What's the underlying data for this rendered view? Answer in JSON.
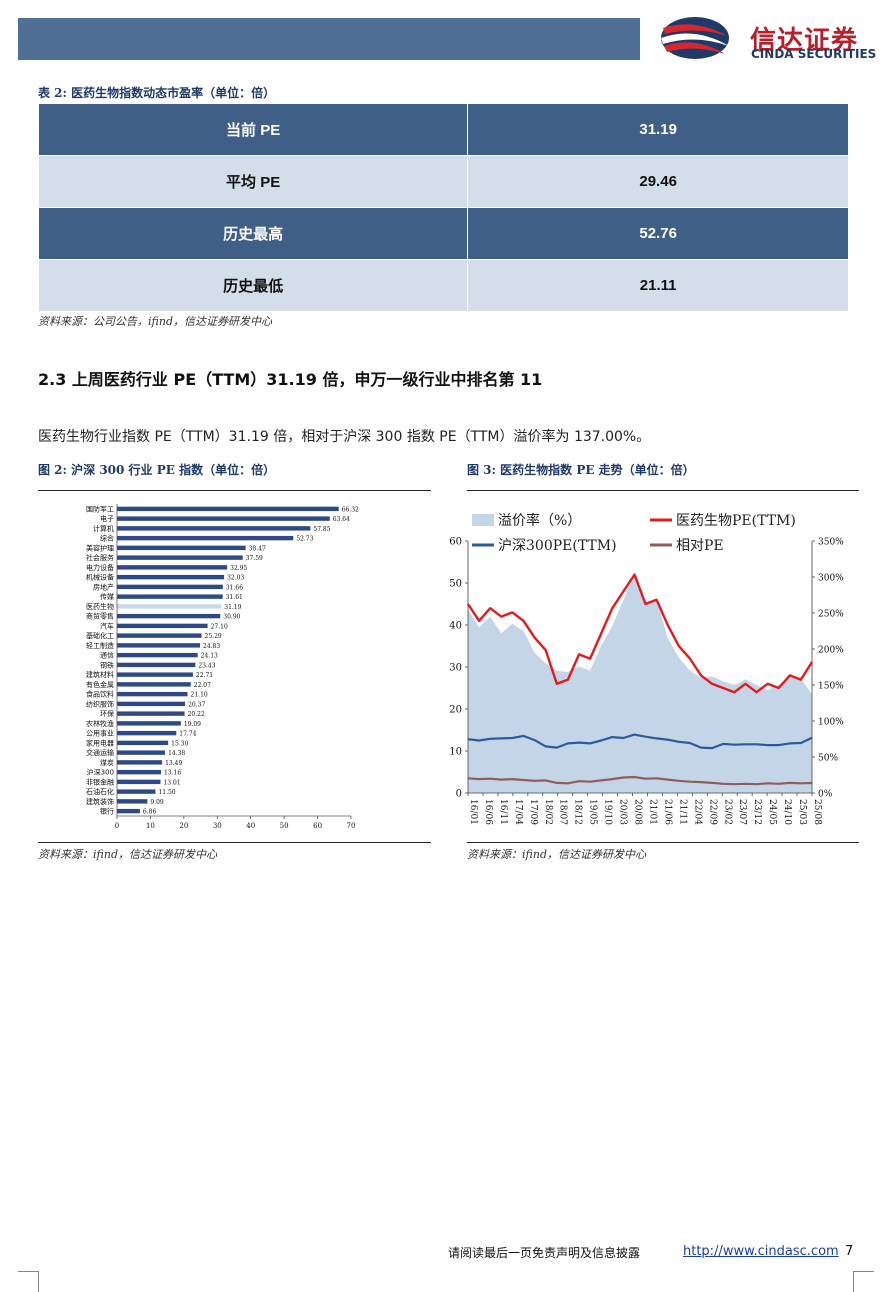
{
  "header": {
    "brand_cn": "信达证券",
    "brand_en": "CINDA SECURITIES"
  },
  "table2": {
    "caption": "表 2: 医药生物指数动态市盈率（单位：倍）",
    "rows": [
      {
        "label": "当前 PE",
        "value": "31.19"
      },
      {
        "label": "平均 PE",
        "value": "29.46"
      },
      {
        "label": "历史最高",
        "value": "52.76"
      },
      {
        "label": "历史最低",
        "value": "21.11"
      }
    ],
    "source": "资料来源：公司公告，ifind，信达证券研发中心"
  },
  "section": {
    "title": "2.3 上周医药行业 PE（TTM）31.19 倍，申万一级行业中排名第 11",
    "body": "医药生物行业指数 PE（TTM）31.19 倍，相对于沪深 300 指数 PE（TTM）溢价率为 137.00%。"
  },
  "figure2": {
    "caption": "图 2: 沪深 300 行业 PE 指数（单位：倍）",
    "source": "资料来源：ifind，信达证券研发中心"
  },
  "figure3": {
    "caption": "图 3: 医药生物指数 PE 走势（单位：倍）",
    "source": "资料来源：ifind，信达证券研发中心"
  },
  "chart_data": [
    {
      "type": "bar",
      "orientation": "horizontal",
      "categories": [
        "国防军工",
        "电子",
        "计算机",
        "综合",
        "美容护理",
        "社会服务",
        "电力设备",
        "机械设备",
        "房地产",
        "传媒",
        "医药生物",
        "商贸零售",
        "汽车",
        "基础化工",
        "轻工制造",
        "通信",
        "钢铁",
        "建筑材料",
        "有色金属",
        "食品饮料",
        "纺织服饰",
        "环保",
        "农林牧渔",
        "公用事业",
        "家用电器",
        "交通运输",
        "煤炭",
        "沪深300",
        "非银金融",
        "石油石化",
        "建筑装饰",
        "银行"
      ],
      "values": [
        66.32,
        63.64,
        57.85,
        52.73,
        38.47,
        37.59,
        32.95,
        32.03,
        31.66,
        31.61,
        31.19,
        30.9,
        27.1,
        25.29,
        24.83,
        24.13,
        23.43,
        22.71,
        22.07,
        21.1,
        20.37,
        20.22,
        19.09,
        17.74,
        15.3,
        14.38,
        13.49,
        13.16,
        13.01,
        11.5,
        9.09,
        6.86
      ],
      "xlim": [
        0,
        70
      ],
      "x_ticks": [
        "0",
        "10",
        "20",
        "30",
        "40",
        "50",
        "60",
        "70"
      ],
      "highlight_category": "医药生物",
      "colors": {
        "bar": "#2e4a86",
        "highlight": "#c9d9ec"
      }
    },
    {
      "type": "line",
      "x_ticks": [
        "16/01",
        "16/06",
        "16/11",
        "17/04",
        "17/09",
        "18/02",
        "18/07",
        "18/12",
        "19/05",
        "19/10",
        "20/03",
        "20/08",
        "21/01",
        "21/06",
        "21/11",
        "22/04",
        "22/09",
        "23/02",
        "23/07",
        "23/12",
        "24/05",
        "24/10",
        "25/03",
        "25/08"
      ],
      "ylim": [
        0,
        60
      ],
      "y_ticks": [
        "0",
        "10",
        "20",
        "30",
        "40",
        "50",
        "60"
      ],
      "y2lim": [
        0,
        350
      ],
      "y2_ticks": [
        "0%",
        "50%",
        "100%",
        "150%",
        "200%",
        "250%",
        "300%",
        "350%"
      ],
      "series": [
        {
          "name": "溢价率（%）",
          "type": "area",
          "axis": "right",
          "color": "#c5d5e8",
          "values": [
            255,
            230,
            245,
            222,
            235,
            225,
            195,
            180,
            170,
            168,
            176,
            170,
            205,
            232,
            268,
            305,
            265,
            270,
            215,
            188,
            170,
            160,
            162,
            155,
            150,
            158,
            150,
            143,
            150,
            162,
            159,
            137
          ]
        },
        {
          "name": "医药生物PE(TTM)",
          "axis": "left",
          "color": "#e41a1c",
          "values": [
            45,
            41,
            44,
            42,
            43,
            41,
            37,
            34,
            26,
            27,
            33,
            32,
            38,
            44,
            48,
            52,
            45,
            46,
            40,
            35,
            32,
            28,
            26,
            25,
            24,
            26,
            24,
            26,
            25,
            28,
            27,
            31.19
          ]
        },
        {
          "name": "沪深300PE(TTM)",
          "axis": "left",
          "color": "#2e5a98",
          "values": [
            12.8,
            12.5,
            12.9,
            13,
            13.1,
            13.6,
            12.6,
            11.1,
            10.8,
            11.8,
            12,
            11.8,
            12.5,
            13.3,
            13.1,
            13.9,
            13.4,
            13,
            12.7,
            12.2,
            11.9,
            10.8,
            10.7,
            11.7,
            11.5,
            11.6,
            11.6,
            11.4,
            11.4,
            11.8,
            11.9,
            13.16
          ]
        },
        {
          "name": "相对PE",
          "axis": "left",
          "color": "#8c5e5e",
          "values": [
            3.5,
            3.3,
            3.4,
            3.2,
            3.3,
            3.1,
            2.9,
            3,
            2.4,
            2.3,
            2.8,
            2.7,
            3,
            3.3,
            3.7,
            3.8,
            3.4,
            3.5,
            3.2,
            2.9,
            2.7,
            2.6,
            2.4,
            2.2,
            2.1,
            2.2,
            2.1,
            2.3,
            2.2,
            2.4,
            2.3,
            2.37
          ]
        }
      ]
    }
  ],
  "footer": {
    "disclaimer": "请阅读最后一页免责声明及信息披露",
    "url": "http://www.cindasc.com",
    "page": "7"
  }
}
